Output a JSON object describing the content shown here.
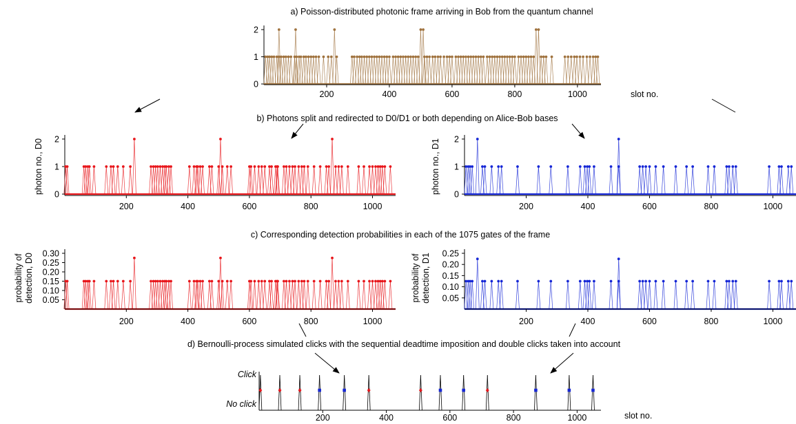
{
  "captions": {
    "a": "a) Poisson-distributed photonic frame arriving in Bob from the quantum channel",
    "b": "b) Photons split and redirected to D0/D1 or both depending on Alice-Bob bases",
    "c": "c) Corresponding detection probabilities in each of the 1075 gates of the frame",
    "d": "d) Bernoulli-process simulated clicks with the sequential deadtime imposition and double clicks taken into account"
  },
  "colors": {
    "bob": "#a0733f",
    "d0": "#e8161b",
    "d1": "#1526d6",
    "axis": "#000000"
  },
  "chart_data": [
    {
      "id": "a",
      "type": "line",
      "xlabel": "slot no.",
      "ylabel": "",
      "xlim": [
        0,
        1075
      ],
      "ylim": [
        0,
        2
      ],
      "xticks": [
        200,
        400,
        600,
        800,
        1000
      ],
      "yticks": [
        0,
        1,
        2
      ],
      "series": [
        {
          "color": "#a0733f",
          "ones": [
            5,
            12,
            18,
            25,
            32,
            41,
            48,
            55,
            63,
            70,
            78,
            86,
            98,
            104,
            112,
            118,
            127,
            134,
            142,
            150,
            158,
            166,
            175,
            190,
            205,
            215,
            232,
            281,
            288,
            297,
            305,
            312,
            320,
            328,
            336,
            344,
            352,
            360,
            368,
            376,
            384,
            392,
            400,
            412,
            420,
            428,
            436,
            444,
            452,
            460,
            468,
            476,
            484,
            492,
            512,
            520,
            528,
            538,
            546,
            555,
            563,
            574,
            584,
            592,
            600,
            612,
            620,
            628,
            636,
            644,
            652,
            660,
            668,
            676,
            684,
            692,
            700,
            712,
            720,
            728,
            736,
            744,
            752,
            760,
            768,
            776,
            784,
            792,
            800,
            812,
            820,
            828,
            836,
            844,
            852,
            860,
            884,
            892,
            900,
            918,
            960,
            970,
            980,
            990,
            998,
            1008,
            1018,
            1030,
            1040,
            1050,
            1058,
            1065
          ],
          "twos": [
            48,
            101,
            225,
            500,
            508,
            868,
            876
          ]
        }
      ]
    },
    {
      "id": "b0",
      "type": "line",
      "xlabel": "",
      "ylabel": "photon no., D0",
      "xlim": [
        0,
        1075
      ],
      "ylim": [
        0,
        2
      ],
      "xticks": [
        200,
        400,
        600,
        800,
        1000
      ],
      "yticks": [
        0,
        1,
        2
      ],
      "series": [
        {
          "color": "#e8161b",
          "ones": [
            3,
            8,
            62,
            68,
            75,
            80,
            95,
            135,
            150,
            158,
            172,
            190,
            213,
            280,
            288,
            295,
            302,
            310,
            318,
            325,
            330,
            338,
            345,
            405,
            420,
            428,
            432,
            440,
            448,
            470,
            478,
            500,
            512,
            528,
            540,
            600,
            605,
            617,
            630,
            640,
            650,
            665,
            672,
            685,
            690,
            692,
            712,
            720,
            730,
            740,
            748,
            760,
            770,
            778,
            790,
            810,
            830,
            850,
            858,
            880,
            890,
            900,
            920,
            955,
            972,
            990,
            1000,
            1010,
            1018,
            1025,
            1032,
            1040,
            1058
          ],
          "twos": [
            226,
            506,
            869
          ]
        }
      ]
    },
    {
      "id": "b1",
      "type": "line",
      "xlabel": "",
      "ylabel": "photon no., D1",
      "xlim": [
        0,
        1075
      ],
      "ylim": [
        0,
        2
      ],
      "xticks": [
        200,
        400,
        600,
        800,
        1000
      ],
      "yticks": [
        0,
        1,
        2
      ],
      "series": [
        {
          "color": "#1526d6",
          "ones": [
            5,
            12,
            18,
            25,
            58,
            66,
            88,
            110,
            120,
            172,
            240,
            280,
            335,
            375,
            390,
            398,
            405,
            420,
            475,
            500,
            568,
            578,
            588,
            600,
            620,
            645,
            685,
            720,
            740,
            790,
            810,
            850,
            858,
            870,
            880,
            988,
            1020,
            1028,
            1050,
            1060
          ],
          "twos": [
            42,
            500
          ]
        }
      ]
    },
    {
      "id": "c0",
      "type": "line",
      "xlabel": "",
      "ylabel": "probability of detection, D0",
      "xlim": [
        0,
        1075
      ],
      "ylim": [
        0,
        0.3
      ],
      "xticks": [
        200,
        400,
        600,
        800,
        1000
      ],
      "yticks": [
        0.05,
        0.1,
        0.15,
        0.2,
        0.25,
        0.3
      ],
      "ytick_labels": [
        "0.05",
        "0.10",
        "0.15",
        "0.20",
        "0.25",
        "0.30"
      ],
      "series": [
        {
          "color": "#e8161b",
          "one_value": 0.15,
          "two_value": 0.275,
          "ones": [
            3,
            8,
            62,
            68,
            75,
            80,
            95,
            135,
            150,
            158,
            172,
            190,
            213,
            280,
            288,
            295,
            302,
            310,
            318,
            325,
            330,
            338,
            345,
            405,
            420,
            428,
            432,
            440,
            448,
            470,
            478,
            500,
            512,
            528,
            540,
            600,
            605,
            617,
            630,
            640,
            650,
            665,
            672,
            685,
            690,
            692,
            712,
            720,
            730,
            740,
            748,
            760,
            770,
            778,
            790,
            810,
            830,
            850,
            858,
            880,
            890,
            900,
            920,
            955,
            972,
            990,
            1000,
            1010,
            1018,
            1025,
            1032,
            1040,
            1058
          ],
          "twos": [
            226,
            506,
            869
          ]
        }
      ]
    },
    {
      "id": "c1",
      "type": "line",
      "xlabel": "",
      "ylabel": "probability of detection, D1",
      "xlim": [
        0,
        1075
      ],
      "ylim": [
        0,
        0.25
      ],
      "xticks": [
        200,
        400,
        600,
        800,
        1000
      ],
      "yticks": [
        0.05,
        0.1,
        0.15,
        0.2,
        0.25
      ],
      "ytick_labels": [
        "0.05",
        "0.10",
        "0.15",
        "0.20",
        "0.25"
      ],
      "series": [
        {
          "color": "#1526d6",
          "one_value": 0.125,
          "two_value": 0.225,
          "ones": [
            5,
            12,
            18,
            25,
            58,
            66,
            88,
            110,
            120,
            172,
            240,
            280,
            335,
            375,
            390,
            398,
            405,
            420,
            475,
            500,
            568,
            578,
            588,
            600,
            620,
            645,
            685,
            720,
            740,
            790,
            810,
            850,
            858,
            870,
            880,
            988,
            1020,
            1028,
            1050,
            1060
          ],
          "twos": [
            42,
            500
          ]
        }
      ]
    },
    {
      "id": "d",
      "type": "line",
      "xlabel": "slot no.",
      "ylabel": "",
      "xlim": [
        0,
        1075
      ],
      "ylim": [
        0,
        1
      ],
      "xticks": [
        200,
        400,
        600,
        800,
        1000
      ],
      "ytick_labels": [
        "Click",
        "No click"
      ],
      "clicks": [
        {
          "x": 4,
          "detector": "D0"
        },
        {
          "x": 65,
          "detector": "D0"
        },
        {
          "x": 128,
          "detector": "D0"
        },
        {
          "x": 190,
          "detector": "D1"
        },
        {
          "x": 268,
          "detector": "D1"
        },
        {
          "x": 345,
          "detector": "D0"
        },
        {
          "x": 508,
          "detector": "D0"
        },
        {
          "x": 570,
          "detector": "D1"
        },
        {
          "x": 643,
          "detector": "D1"
        },
        {
          "x": 718,
          "detector": "D0"
        },
        {
          "x": 870,
          "detector": "D1"
        },
        {
          "x": 975,
          "detector": "D1"
        },
        {
          "x": 1050,
          "detector": "D1"
        }
      ]
    }
  ]
}
